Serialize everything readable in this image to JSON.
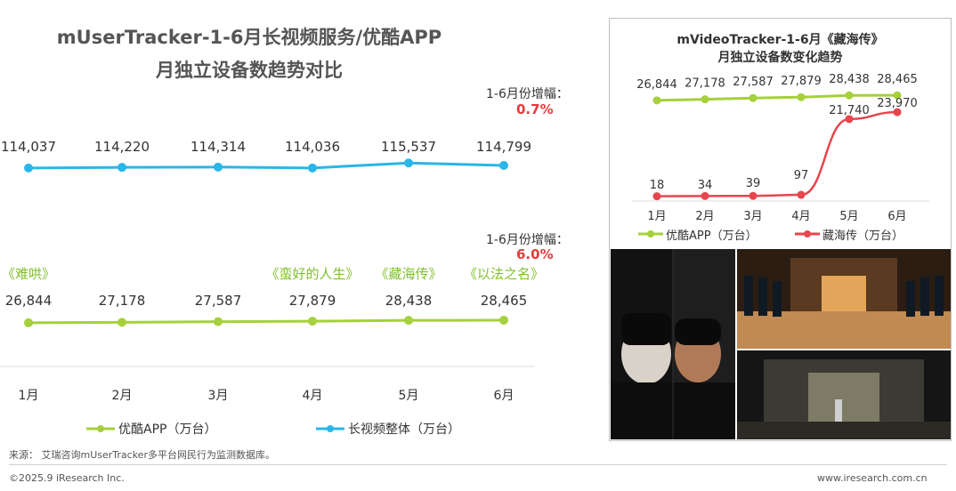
{
  "left": {
    "title_line1": "mUserTracker-1-6月长视频服务/优酷APP",
    "title_line2": "月独立设备数趋势对比",
    "growth_top_label": "1-6月份增幅：",
    "growth_top_value": "0.7%",
    "growth_bottom_label": "1-6月份增幅：",
    "growth_bottom_value": "6.0%",
    "legend_youku": "优酷APP（万台）",
    "legend_total": "长视频整体（万台）"
  },
  "right": {
    "title_line1": "mVideoTracker-1-6月《藏海传》",
    "title_line2": "月独立设备数变化趋势",
    "legend_youku": "优酷APP（万台）",
    "legend_drama": "藏海传（万台）"
  },
  "footnote": "来源：  艾瑞咨询mUserTracker多平台网民行为监测数据库。",
  "footer_left": "©2025.9 iResearch Inc.",
  "footer_right": "www.iresearch.com.cn",
  "colors": {
    "blue": "#29b6e8",
    "green": "#a6d03c",
    "red": "#e8454e",
    "redtext": "#e33b3b",
    "dramagreen": "#7fbf2a"
  },
  "chart_data": [
    {
      "type": "line",
      "x": [
        "1月",
        "2月",
        "3月",
        "4月",
        "5月",
        "6月"
      ],
      "series": [
        {
          "name": "长视频整体（万台）",
          "values": [
            114037,
            114220,
            114314,
            114036,
            115537,
            114799
          ],
          "labels": [
            "114,037",
            "114,220",
            "114,314",
            "114,036",
            "115,537",
            "114,799"
          ]
        },
        {
          "name": "优酷APP（万台）",
          "values": [
            26844,
            27178,
            27587,
            27879,
            28438,
            28465
          ],
          "labels": [
            "26,844",
            "27,178",
            "27,587",
            "27,879",
            "28,438",
            "28,465"
          ]
        }
      ],
      "annotations": [
        "《难哄》",
        "",
        "",
        "《蛮好的人生》",
        "《藏海传》",
        "《以法之名》"
      ]
    },
    {
      "type": "line",
      "x": [
        "1月",
        "2月",
        "3月",
        "4月",
        "5月",
        "6月"
      ],
      "series": [
        {
          "name": "优酷APP（万台）",
          "values": [
            26844,
            27178,
            27587,
            27879,
            28438,
            28465
          ],
          "labels": [
            "26,844",
            "27,178",
            "27,587",
            "27,879",
            "28,438",
            "28,465"
          ]
        },
        {
          "name": "藏海传（万台）",
          "values": [
            18,
            34,
            39,
            97,
            21740,
            23970
          ],
          "labels": [
            "18",
            "34",
            "39",
            "97",
            "21,740",
            "23,970"
          ]
        }
      ]
    }
  ]
}
